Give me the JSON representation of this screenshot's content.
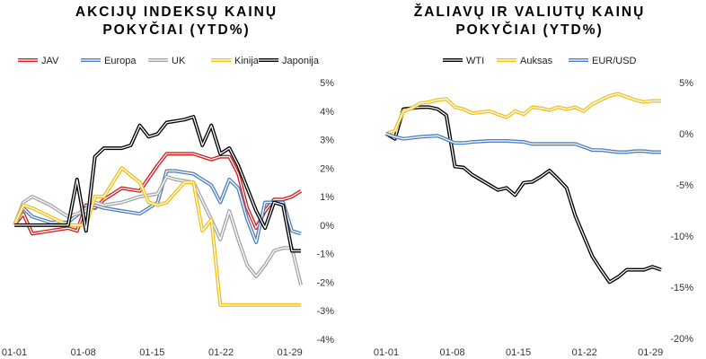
{
  "chart_data": [
    {
      "type": "line",
      "title_lines": [
        "AKCIJŲ INDEKSŲ KAINŲ",
        "POKYČIAI (YTD%)"
      ],
      "x_tick_labels": [
        "01-01",
        "01-08",
        "01-15",
        "01-22",
        "01-29"
      ],
      "x_tick_day_index": [
        0,
        5,
        10,
        15,
        20
      ],
      "y_axis": {
        "side": "right",
        "ticks": [
          5,
          4,
          3,
          2,
          1,
          0,
          -1,
          -2,
          -3,
          -4
        ],
        "tick_labels": [
          "5%",
          "4%",
          "3%",
          "2%",
          "1%",
          "0%",
          "-1%",
          "-2%",
          "-3%",
          "-4%"
        ],
        "ylim": [
          -4,
          5
        ]
      },
      "legend_position": "top",
      "grid": false,
      "series": [
        {
          "name": "JAV",
          "color": "#d11f1f",
          "x": [
            0,
            0.65,
            1.3,
            2.6,
            3.9,
            4.55,
            5.2,
            5.85,
            6.5,
            7.8,
            9.1,
            10.4,
            11.05,
            11.7,
            13.0,
            14.3,
            14.95,
            15.6,
            16.25,
            16.9,
            17.55,
            18.2,
            18.85,
            19.5,
            20.15,
            20.8
          ],
          "values": [
            0.0,
            0.4,
            -0.3,
            -0.2,
            -0.1,
            -0.2,
            0.7,
            0.6,
            0.9,
            1.3,
            1.2,
            2.1,
            2.5,
            2.5,
            2.5,
            2.3,
            2.4,
            2.4,
            1.8,
            0.6,
            -0.1,
            0.5,
            0.9,
            0.9,
            1.0,
            1.2
          ]
        },
        {
          "name": "Europa",
          "color": "#4f7fc0",
          "x": [
            0,
            0.65,
            1.3,
            2.6,
            3.9,
            5.2,
            5.85,
            6.5,
            7.8,
            9.1,
            10.4,
            11.05,
            11.7,
            13.0,
            14.3,
            14.95,
            15.6,
            16.25,
            16.9,
            17.55,
            18.2,
            18.85,
            19.5,
            20.15,
            20.8
          ],
          "values": [
            0.0,
            0.6,
            0.3,
            0.1,
            0.1,
            0.6,
            0.7,
            0.6,
            0.5,
            0.4,
            0.8,
            1.9,
            1.9,
            1.8,
            1.4,
            0.8,
            1.6,
            1.3,
            0.2,
            -0.6,
            0.8,
            0.8,
            0.8,
            -0.2,
            -0.3
          ]
        },
        {
          "name": "UK",
          "color": "#a6a6a6",
          "x": [
            0,
            0.65,
            1.3,
            2.6,
            3.9,
            5.2,
            5.85,
            6.5,
            7.8,
            9.1,
            10.4,
            11.05,
            11.7,
            13.0,
            14.3,
            14.95,
            15.6,
            16.25,
            16.9,
            17.55,
            18.2,
            18.85,
            19.5,
            20.15,
            20.8
          ],
          "values": [
            0.0,
            0.8,
            1.0,
            0.7,
            0.3,
            0.5,
            0.8,
            0.7,
            0.8,
            1.0,
            1.1,
            1.7,
            1.6,
            1.5,
            0.2,
            -0.5,
            0.5,
            -0.5,
            -1.4,
            -1.8,
            -1.4,
            -0.9,
            -0.8,
            -0.8,
            -2.1
          ]
        },
        {
          "name": "Kinija",
          "color": "#f2c11a",
          "x": [
            0,
            0.65,
            1.3,
            2.6,
            3.9,
            5.2,
            5.85,
            6.5,
            7.8,
            9.1,
            9.75,
            10.4,
            11.05,
            12.35,
            13.0,
            13.65,
            14.3,
            14.95,
            15.6,
            16.9,
            18.2,
            19.5,
            20.15,
            20.8
          ],
          "values": [
            0.0,
            0.7,
            0.6,
            0.3,
            0.0,
            0.0,
            1.0,
            1.0,
            2.0,
            1.5,
            0.8,
            0.7,
            0.8,
            1.5,
            1.5,
            -0.2,
            0.2,
            -2.8,
            -2.8,
            -2.8,
            -2.8,
            -2.8,
            -2.8,
            -2.8
          ]
        },
        {
          "name": "Japonija",
          "color": "#000000",
          "x": [
            0,
            0.65,
            1.3,
            2.6,
            3.9,
            4.55,
            5.2,
            5.85,
            6.5,
            7.8,
            8.45,
            9.1,
            9.75,
            10.4,
            11.05,
            12.35,
            13.0,
            13.65,
            14.3,
            14.95,
            15.6,
            16.25,
            16.9,
            17.55,
            18.2,
            18.85,
            19.5,
            20.15,
            20.8
          ],
          "values": [
            0.0,
            0.0,
            0.0,
            0.0,
            0.0,
            1.6,
            -0.2,
            2.4,
            2.7,
            2.7,
            2.8,
            3.5,
            3.1,
            3.2,
            3.6,
            3.7,
            3.8,
            2.8,
            3.5,
            2.5,
            2.7,
            2.1,
            1.3,
            0.5,
            -0.1,
            0.8,
            0.7,
            -0.9,
            -0.9
          ]
        }
      ]
    },
    {
      "type": "line",
      "title_lines": [
        "ŽALIAVŲ IR VALIUTŲ KAINŲ",
        "POKYČIAI (YTD%)"
      ],
      "x_tick_labels": [
        "01-01",
        "01-08",
        "01-15",
        "01-22",
        "01-29"
      ],
      "x_tick_day_index": [
        0,
        5,
        10,
        15,
        20
      ],
      "y_axis": {
        "side": "right",
        "ticks": [
          5,
          0,
          -5,
          -10,
          -15,
          -20
        ],
        "tick_labels": [
          "5%",
          "0%",
          "-5%",
          "-10%",
          "-15%",
          "-20%"
        ],
        "ylim": [
          -20,
          5
        ]
      },
      "legend_position": "top",
      "grid": false,
      "series": [
        {
          "name": "WTI",
          "color": "#000000",
          "x": [
            0,
            0.65,
            1.3,
            1.95,
            2.6,
            3.25,
            3.9,
            4.55,
            5.2,
            5.85,
            6.5,
            7.8,
            8.45,
            9.1,
            9.75,
            10.4,
            11.05,
            11.7,
            12.35,
            13.0,
            13.65,
            14.3,
            14.95,
            15.6,
            16.25,
            16.9,
            17.55,
            18.2,
            18.85,
            19.5,
            20.15,
            20.8
          ],
          "values": [
            0.0,
            -0.5,
            2.4,
            2.5,
            2.6,
            2.6,
            2.4,
            1.8,
            -3.2,
            -3.3,
            -4.0,
            -5.0,
            -5.5,
            -5.3,
            -6.0,
            -4.8,
            -4.7,
            -4.2,
            -3.6,
            -4.4,
            -5.3,
            -8.0,
            -10.0,
            -12.0,
            -13.3,
            -14.5,
            -14.0,
            -13.3,
            -13.3,
            -13.3,
            -13.0,
            -13.3
          ]
        },
        {
          "name": "Auksas",
          "color": "#f2c11a",
          "x": [
            0,
            0.65,
            1.3,
            1.95,
            2.6,
            3.25,
            3.9,
            4.55,
            5.2,
            5.85,
            6.5,
            7.8,
            8.45,
            9.1,
            9.75,
            10.4,
            11.05,
            11.7,
            12.35,
            13.0,
            13.65,
            14.3,
            14.95,
            15.6,
            16.25,
            16.9,
            17.55,
            18.2,
            18.85,
            19.5,
            20.15,
            20.8
          ],
          "values": [
            0.0,
            0.3,
            2.2,
            2.5,
            3.0,
            3.1,
            3.3,
            3.4,
            2.6,
            2.4,
            2.0,
            2.2,
            1.9,
            1.6,
            2.2,
            1.9,
            2.6,
            2.5,
            2.3,
            2.6,
            2.4,
            2.6,
            2.2,
            2.9,
            3.3,
            3.7,
            3.9,
            3.6,
            3.3,
            3.1,
            3.2,
            3.2
          ]
        },
        {
          "name": "EUR/USD",
          "color": "#4f7fc0",
          "x": [
            0,
            0.65,
            1.3,
            2.6,
            3.9,
            5.2,
            5.85,
            6.5,
            7.8,
            9.1,
            10.4,
            11.05,
            11.7,
            13.0,
            14.3,
            15.6,
            16.25,
            16.9,
            17.55,
            18.2,
            18.85,
            19.5,
            20.15,
            20.8
          ],
          "values": [
            0.0,
            -0.3,
            -0.5,
            -0.3,
            -0.2,
            -0.9,
            -0.9,
            -0.8,
            -0.7,
            -0.7,
            -0.8,
            -1.0,
            -1.0,
            -1.0,
            -1.0,
            -1.6,
            -1.6,
            -1.7,
            -1.8,
            -1.8,
            -1.7,
            -1.7,
            -1.8,
            -1.8
          ]
        }
      ]
    }
  ]
}
